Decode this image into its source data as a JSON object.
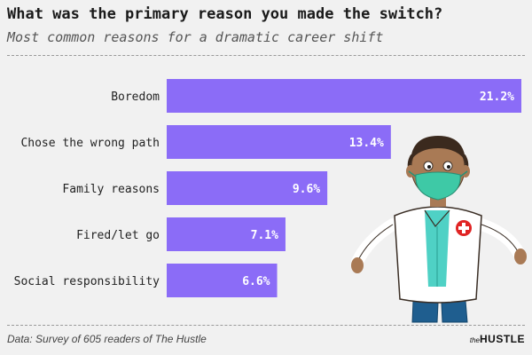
{
  "brand": {
    "prefix": "the",
    "name": "HUSTLE"
  },
  "footer": {
    "source": "Data: Survey of 605 readers of The Hustle"
  },
  "colors": {
    "bar": "#8b6cf7",
    "label": "#222222",
    "value": "#ffffff",
    "background": "#f1f1f1"
  },
  "illustration": {
    "icon": "doctor-with-mask-icon"
  },
  "chart_data": {
    "type": "bar",
    "orientation": "horizontal",
    "title": "What was the primary reason you made the switch?",
    "subtitle": "Most common reasons for a dramatic career shift",
    "categories": [
      "Boredom",
      "Chose the wrong path",
      "Family reasons",
      "Fired/let go",
      "Social responsibility"
    ],
    "values": [
      21.2,
      13.4,
      9.6,
      7.1,
      6.6
    ],
    "value_labels": [
      "21.2%",
      "13.4%",
      "9.6%",
      "7.1%",
      "6.6%"
    ],
    "unit": "%",
    "xlim": [
      0,
      21.2
    ],
    "grid": false,
    "legend": "none"
  }
}
